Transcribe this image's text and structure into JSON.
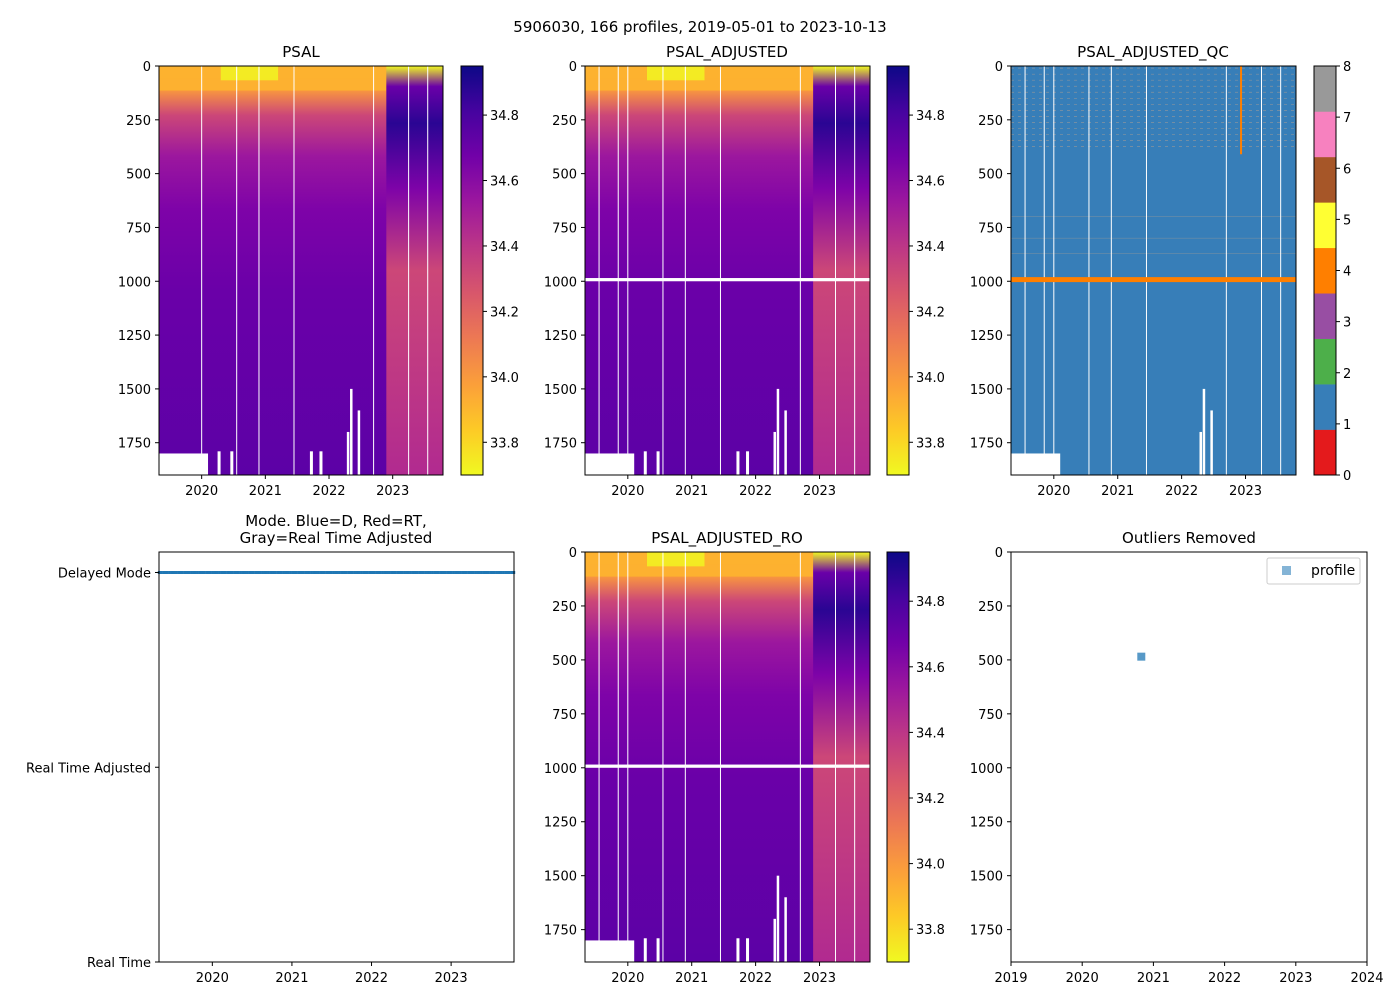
{
  "figure": {
    "suptitle": "5906030, 166 profiles, 2019-05-01 to 2023-10-13"
  },
  "colors": {
    "qc": [
      "#e41a1c",
      "#377eb8",
      "#4daf4a",
      "#984ea3",
      "#ff7f00",
      "#ffff33",
      "#a65628",
      "#f781bf",
      "#999999"
    ],
    "plasma": [
      "#f0f921",
      "#fdca26",
      "#fb9f3a",
      "#ed7953",
      "#d8576b",
      "#bd3786",
      "#9c179e",
      "#7201a8",
      "#46039f",
      "#0d0887"
    ],
    "mode_delayed": "#1f77b4",
    "outlier": "#1f77b4"
  },
  "chart_data": [
    {
      "id": "psal",
      "type": "heatmap",
      "title": "PSAL",
      "xlim": [
        2019.33,
        2023.79
      ],
      "ylim": [
        1900,
        0
      ],
      "xticks": [
        2020,
        2021,
        2022,
        2023
      ],
      "xtick_labels": [
        "2020",
        "2021",
        "2022",
        "2023"
      ],
      "yticks": [
        0,
        250,
        500,
        750,
        1000,
        1250,
        1500,
        1750
      ],
      "ytick_labels": [
        "0",
        "250",
        "500",
        "750",
        "1000",
        "1250",
        "1500",
        "1750"
      ],
      "colorbar": {
        "range": [
          33.7,
          34.95
        ],
        "ticks": [
          33.8,
          34.0,
          34.2,
          34.4,
          34.6,
          34.8
        ],
        "tick_labels": [
          "33.8",
          "34.0",
          "34.2",
          "34.4",
          "34.6",
          "34.8"
        ]
      },
      "gap_lines": [
        2020.0,
        2020.55,
        2020.9,
        2021.45,
        2022.7,
        2023.25,
        2023.55
      ],
      "has_1000_gap": false
    },
    {
      "id": "psal_adj",
      "type": "heatmap",
      "title": "PSAL_ADJUSTED",
      "xlim": [
        2019.33,
        2023.79
      ],
      "ylim": [
        1900,
        0
      ],
      "xticks": [
        2020,
        2021,
        2022,
        2023
      ],
      "xtick_labels": [
        "2020",
        "2021",
        "2022",
        "2023"
      ],
      "yticks": [
        0,
        250,
        500,
        750,
        1000,
        1250,
        1500,
        1750
      ],
      "ytick_labels": [
        "0",
        "250",
        "500",
        "750",
        "1000",
        "1250",
        "1500",
        "1750"
      ],
      "colorbar": {
        "range": [
          33.7,
          34.95
        ],
        "ticks": [
          33.8,
          34.0,
          34.2,
          34.4,
          34.6,
          34.8
        ],
        "tick_labels": [
          "33.8",
          "34.0",
          "34.2",
          "34.4",
          "34.6",
          "34.8"
        ]
      },
      "gap_lines": [
        2019.55,
        2019.85,
        2020.0,
        2020.55,
        2020.9,
        2021.45,
        2022.7,
        2023.25,
        2023.55
      ],
      "has_1000_gap": true
    },
    {
      "id": "psal_qc",
      "type": "heatmap",
      "title": "PSAL_ADJUSTED_QC",
      "xlim": [
        2019.33,
        2023.79
      ],
      "ylim": [
        1900,
        0
      ],
      "xticks": [
        2020,
        2021,
        2022,
        2023
      ],
      "xtick_labels": [
        "2020",
        "2021",
        "2022",
        "2023"
      ],
      "yticks": [
        0,
        250,
        500,
        750,
        1000,
        1250,
        1500,
        1750
      ],
      "ytick_labels": [
        "0",
        "250",
        "500",
        "750",
        "1000",
        "1250",
        "1500",
        "1750"
      ],
      "colorbar": {
        "range": [
          0,
          8
        ],
        "ticks": [
          0,
          1,
          2,
          3,
          4,
          5,
          6,
          7,
          8
        ],
        "tick_labels": [
          "0",
          "1",
          "2",
          "3",
          "4",
          "5",
          "6",
          "7",
          "8"
        ]
      },
      "gap_lines": [
        2019.55,
        2019.85,
        2020.0,
        2020.55,
        2020.9,
        2021.45,
        2022.7,
        2023.25,
        2023.55
      ],
      "qc_background": 1,
      "qc_bad_band_depth": 990,
      "qc_bad_band_value": 4,
      "qc_probe_line": {
        "x": 2022.93,
        "depth": [
          0,
          410
        ],
        "value": 4
      }
    },
    {
      "id": "mode",
      "type": "scatter",
      "title": "Mode. Blue=D, Red=RT,",
      "title_line2": "Gray=Real Time Adjusted",
      "xlim": [
        2019.33,
        2023.79
      ],
      "ylim": [
        0,
        1
      ],
      "xticks": [
        2020,
        2021,
        2022,
        2023
      ],
      "xtick_labels": [
        "2020",
        "2021",
        "2022",
        "2023"
      ],
      "ytick_labels": [
        "Delayed Mode",
        "Real Time Adjusted",
        "Real Time"
      ],
      "yticks": [
        0.95,
        0.475,
        0
      ],
      "series": [
        {
          "name": "Delayed Mode",
          "x_range": [
            2019.33,
            2023.79
          ],
          "y": 0.95,
          "count": 166
        }
      ]
    },
    {
      "id": "psal_ro",
      "type": "heatmap",
      "title": "PSAL_ADJUSTED_RO",
      "xlim": [
        2019.33,
        2023.79
      ],
      "ylim": [
        1900,
        0
      ],
      "xticks": [
        2020,
        2021,
        2022,
        2023
      ],
      "xtick_labels": [
        "2020",
        "2021",
        "2022",
        "2023"
      ],
      "yticks": [
        0,
        250,
        500,
        750,
        1000,
        1250,
        1500,
        1750
      ],
      "ytick_labels": [
        "0",
        "250",
        "500",
        "750",
        "1000",
        "1250",
        "1500",
        "1750"
      ],
      "colorbar": {
        "range": [
          33.7,
          34.95
        ],
        "ticks": [
          33.8,
          34.0,
          34.2,
          34.4,
          34.6,
          34.8
        ],
        "tick_labels": [
          "33.8",
          "34.0",
          "34.2",
          "34.4",
          "34.6",
          "34.8"
        ]
      },
      "gap_lines": [
        2019.55,
        2019.85,
        2020.0,
        2020.55,
        2020.9,
        2021.45,
        2022.7,
        2023.25,
        2023.55
      ],
      "has_1000_gap": true
    },
    {
      "id": "outliers",
      "type": "scatter",
      "title": "Outliers Removed",
      "xlim": [
        2019,
        2024
      ],
      "ylim": [
        1900,
        0
      ],
      "xticks": [
        2019,
        2020,
        2021,
        2022,
        2023,
        2024
      ],
      "xtick_labels": [
        "2019",
        "2020",
        "2021",
        "2022",
        "2023",
        "2024"
      ],
      "yticks": [
        0,
        250,
        500,
        750,
        1000,
        1250,
        1500,
        1750
      ],
      "ytick_labels": [
        "0",
        "250",
        "500",
        "750",
        "1000",
        "1250",
        "1500",
        "1750"
      ],
      "legend": {
        "label": "profile",
        "position": "top-right"
      },
      "points": [
        {
          "x": 2020.83,
          "y": 485
        }
      ]
    }
  ]
}
